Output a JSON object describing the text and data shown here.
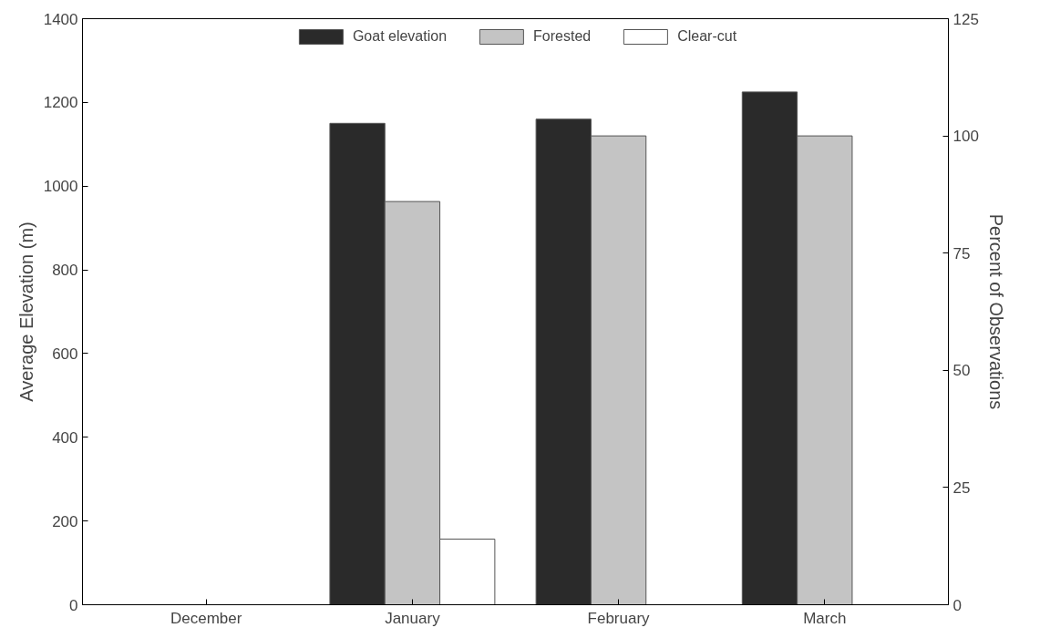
{
  "chart_data": {
    "type": "bar",
    "categories": [
      "December",
      "January",
      "February",
      "March"
    ],
    "ylabel": "Average Elevation (m)",
    "y2label": "Percent of Observations",
    "ylim": [
      0,
      1400
    ],
    "yticks": [
      0,
      200,
      400,
      600,
      800,
      1000,
      1200,
      1400
    ],
    "y2lim": [
      0,
      125
    ],
    "y2ticks": [
      0,
      25,
      50,
      75,
      100,
      125
    ],
    "series": [
      {
        "name": "Goat elevation",
        "color": "#2a2a2a",
        "values": [
          null,
          1150,
          1160,
          1225
        ]
      },
      {
        "name": "Forested",
        "color": "#c4c4c4",
        "axis": "y2",
        "values": [
          null,
          86,
          100,
          100
        ]
      },
      {
        "name": "Clear-cut",
        "color": "#ffffff",
        "axis": "y2",
        "values": [
          null,
          14,
          null,
          null
        ]
      }
    ],
    "grid": false,
    "legend": "top"
  }
}
